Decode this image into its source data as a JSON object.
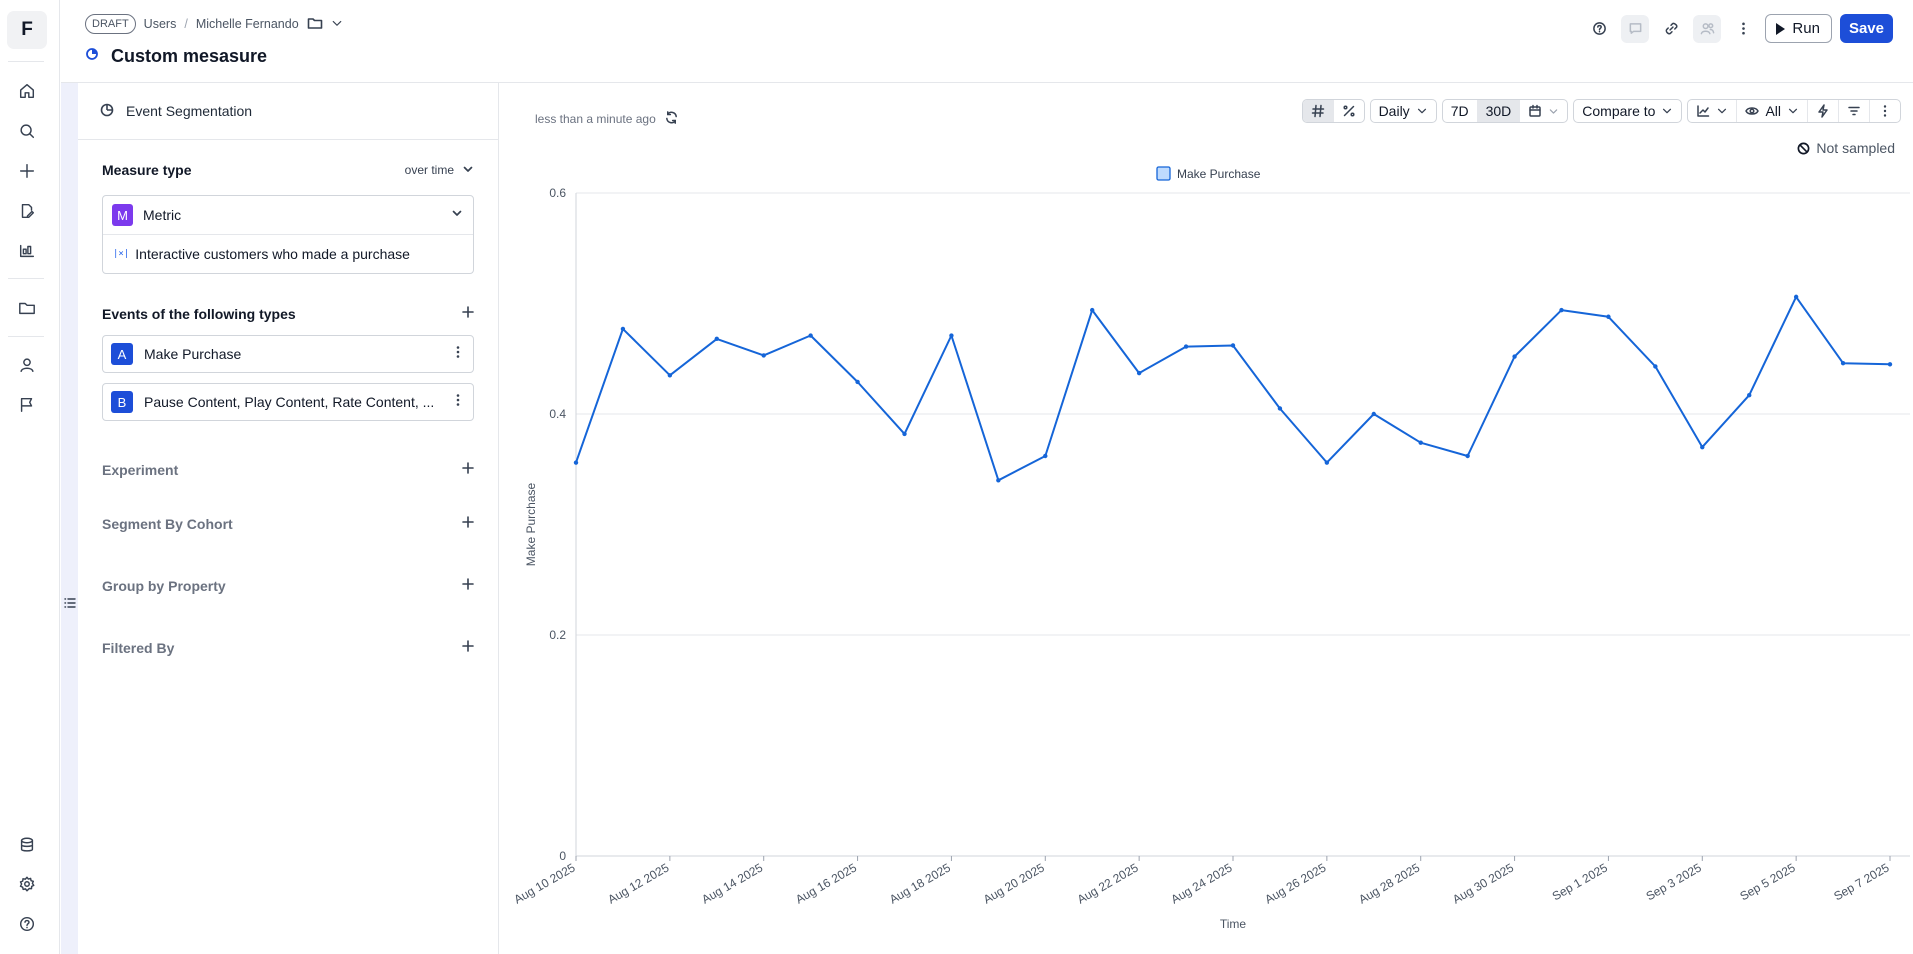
{
  "header": {
    "draft_label": "DRAFT",
    "breadcrumb_users": "Users",
    "breadcrumb_separator": "/",
    "breadcrumb_owner": "Michelle Fernando",
    "title": "Custom mesasure",
    "run_label": "Run",
    "save_label": "Save"
  },
  "rail": {
    "logo": "F",
    "icons": [
      "home-icon",
      "search-icon",
      "plus-icon",
      "edit-document-icon",
      "dashboard-icon",
      "folder-icon",
      "user-icon",
      "flag-icon",
      "database-icon",
      "settings-icon",
      "help-icon"
    ]
  },
  "panel": {
    "analysis_type": "Event Segmentation",
    "measure_type_label": "Measure type",
    "measure_mode": "over time",
    "metric_badge": "M",
    "metric_name": "Metric",
    "metric_description": "Interactive customers who made a purchase",
    "events_label": "Events of the following types",
    "events": [
      {
        "badge": "A",
        "label": "Make Purchase"
      },
      {
        "badge": "B",
        "label": "Pause Content, Play Content, Rate Content, ..."
      }
    ],
    "experiment_label": "Experiment",
    "segment_label": "Segment By Cohort",
    "group_label": "Group by Property",
    "filter_label": "Filtered By"
  },
  "toolbar": {
    "updated_text": "less than a minute ago",
    "interval": "Daily",
    "range_7d": "7D",
    "range_30d": "30D",
    "compare": "Compare to",
    "visibility": "All",
    "sampling": "Not sampled"
  },
  "chart_data": {
    "type": "line",
    "xlabel": "Time",
    "ylabel": "Make Purchase",
    "ylim": [
      0,
      0.6
    ],
    "yticks": [
      0,
      0.2,
      0.4,
      0.6
    ],
    "grid": true,
    "legend_position": "top-center",
    "series_color": "#1565d8",
    "x_tick_labels": [
      "Aug 10 2025",
      "Aug 12 2025",
      "Aug 14 2025",
      "Aug 16 2025",
      "Aug 18 2025",
      "Aug 20 2025",
      "Aug 22 2025",
      "Aug 24 2025",
      "Aug 26 2025",
      "Aug 28 2025",
      "Aug 30 2025",
      "Sep 1 2025",
      "Sep 3 2025",
      "Sep 5 2025",
      "Sep 7 2025"
    ],
    "series": [
      {
        "name": "Make Purchase",
        "values": [
          0.356,
          0.477,
          0.435,
          0.468,
          0.453,
          0.471,
          0.429,
          0.382,
          0.471,
          0.34,
          0.362,
          0.494,
          0.437,
          0.461,
          0.462,
          0.405,
          0.356,
          0.4,
          0.374,
          0.362,
          0.452,
          0.494,
          0.488,
          0.443,
          0.37,
          0.417,
          0.506,
          0.446,
          0.445
        ]
      }
    ]
  }
}
